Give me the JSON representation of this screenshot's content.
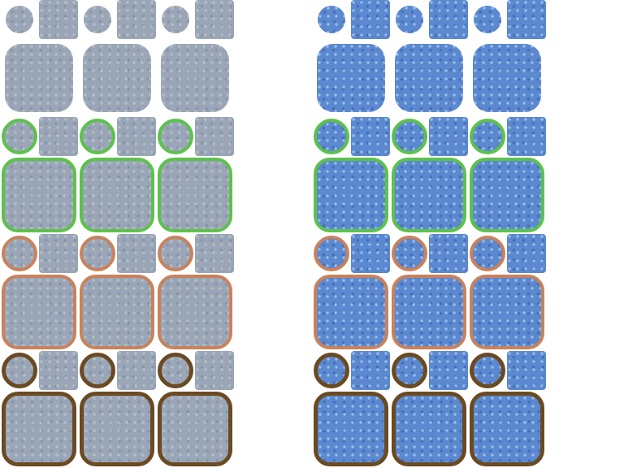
{
  "sheets": [
    {
      "id": "gray",
      "fill": "#9aa6b8"
    },
    {
      "id": "blue",
      "fill": "#5b88cf"
    }
  ],
  "border_variants": [
    {
      "name": "none",
      "color": ""
    },
    {
      "name": "green",
      "color": "#5cc24a"
    },
    {
      "name": "orange",
      "color": "#c9825b"
    },
    {
      "name": "brown",
      "color": "#6b4a22"
    }
  ]
}
